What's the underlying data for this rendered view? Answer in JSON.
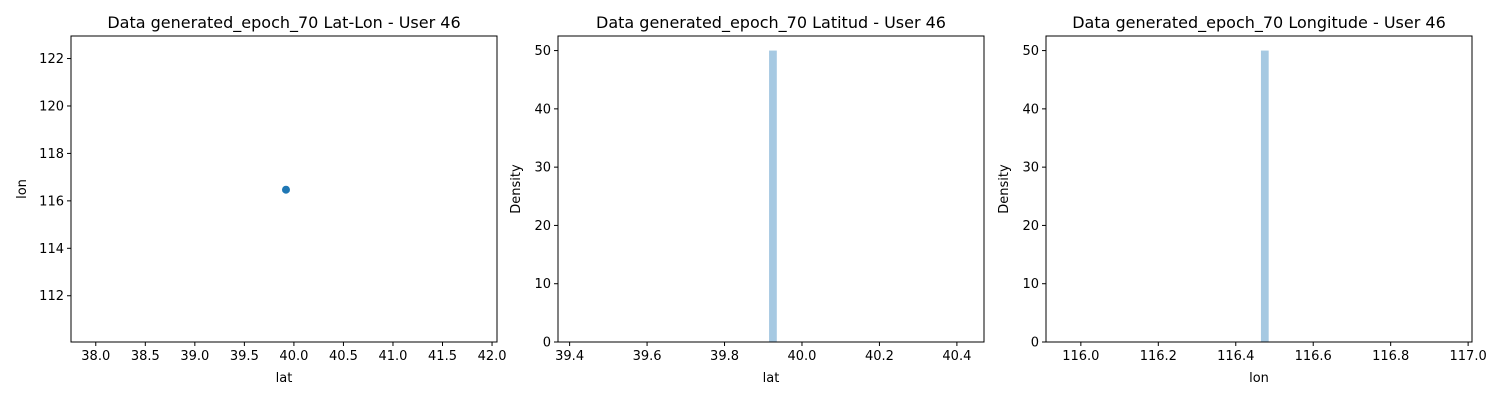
{
  "chart_data": [
    {
      "type": "scatter",
      "title": "Data generated_epoch_70 Lat-Lon - User 46",
      "xlabel": "lat",
      "ylabel": "lon",
      "xlim": [
        37.75,
        42.05
      ],
      "ylim": [
        110.05,
        122.95
      ],
      "xticks": [
        "38.0",
        "38.5",
        "39.0",
        "39.5",
        "40.0",
        "40.5",
        "41.0",
        "41.5",
        "42.0"
      ],
      "yticks": [
        "112",
        "114",
        "116",
        "118",
        "120",
        "122"
      ],
      "points": [
        {
          "x": 39.92,
          "y": 116.47
        }
      ],
      "color": "#1f77b4"
    },
    {
      "type": "bar",
      "title": "Data generated_epoch_70 Latitud - User 46",
      "xlabel": "lat",
      "ylabel": "Density",
      "xlim": [
        39.37,
        40.47
      ],
      "ylim": [
        0,
        52.5
      ],
      "xticks": [
        "39.4",
        "39.6",
        "39.8",
        "40.0",
        "40.2",
        "40.4"
      ],
      "yticks": [
        "0",
        "10",
        "20",
        "30",
        "40",
        "50"
      ],
      "bars": [
        {
          "x0": 39.915,
          "x1": 39.935,
          "value": 50
        }
      ],
      "color": "#a6c9e2"
    },
    {
      "type": "bar",
      "title": "Data generated_epoch_70 Longitude - User 46",
      "xlabel": "lon",
      "ylabel": "Density",
      "xlim": [
        115.91,
        117.01
      ],
      "ylim": [
        0,
        52.5
      ],
      "xticks": [
        "116.0",
        "116.2",
        "116.4",
        "116.6",
        "116.8",
        "117.0"
      ],
      "yticks": [
        "0",
        "10",
        "20",
        "30",
        "40",
        "50"
      ],
      "bars": [
        {
          "x0": 116.465,
          "x1": 116.485,
          "value": 50
        }
      ],
      "color": "#a6c9e2"
    }
  ]
}
